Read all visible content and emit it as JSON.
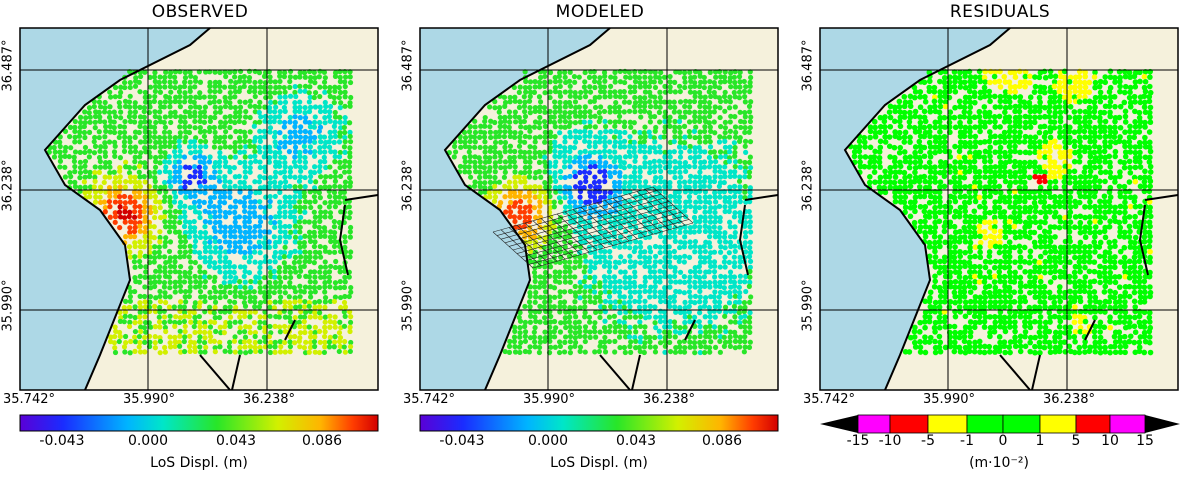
{
  "panels": [
    {
      "title": "OBSERVED",
      "lat_labels": [
        "36.487°",
        "36.238°",
        "35.990°"
      ],
      "lon_labels": [
        "35.742°",
        "35.990°",
        "36.238°"
      ],
      "colorbar": {
        "type": "continuous",
        "ticks": [
          "-0.043",
          "0.000",
          "0.043",
          "0.086"
        ],
        "label": "LoS Displ. (m)"
      }
    },
    {
      "title": "MODELED",
      "lat_labels": [
        "36.487°",
        "36.238°",
        "35.990°"
      ],
      "lon_labels": [
        "35.742°",
        "35.990°",
        "36.238°"
      ],
      "colorbar": {
        "type": "continuous",
        "ticks": [
          "-0.043",
          "0.000",
          "0.043",
          "0.086"
        ],
        "label": "LoS Displ. (m)"
      }
    },
    {
      "title": "RESIDUALS",
      "lat_labels": [
        "36.487°",
        "36.238°",
        "35.990°"
      ],
      "lon_labels": [
        "35.742°",
        "35.990°",
        "36.238°"
      ],
      "colorbar": {
        "type": "discrete",
        "ticks": [
          "-15",
          "-10",
          "-5",
          "-1",
          "0",
          "1",
          "5",
          "10",
          "15"
        ],
        "label": "(m·10⁻²)"
      }
    }
  ],
  "colors": {
    "sea": "#add8e6",
    "land": "#f5f1dc",
    "jet": [
      "#5a00d6",
      "#1a2cff",
      "#00b4ff",
      "#00e6c8",
      "#28e628",
      "#d2f000",
      "#ffb400",
      "#ff3c00",
      "#d20000"
    ],
    "residual_bins": [
      "#000000",
      "#ff00ff",
      "#ff0000",
      "#ffff00",
      "#00ff00",
      "#00ff00",
      "#ffff00",
      "#ff0000",
      "#ff00ff",
      "#000000"
    ]
  }
}
